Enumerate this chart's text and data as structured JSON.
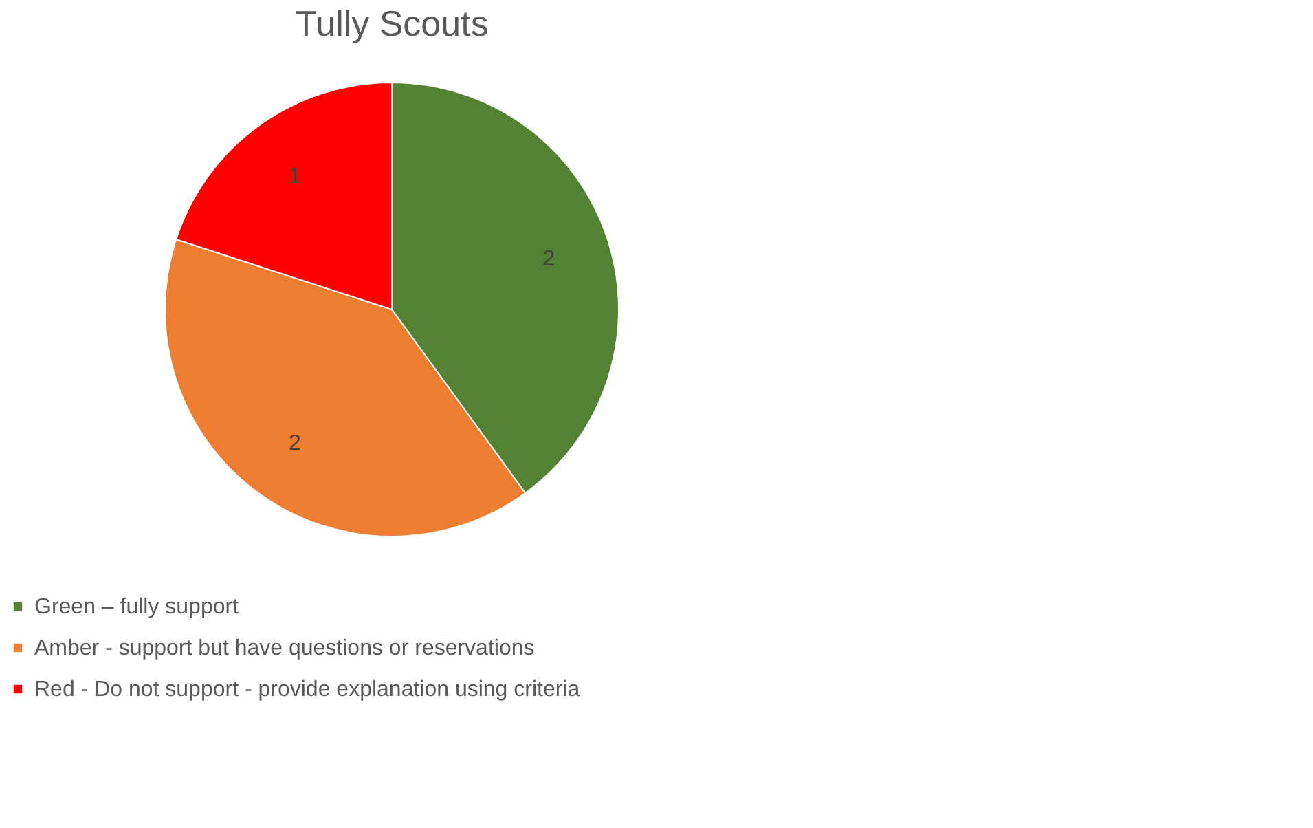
{
  "chart_data": {
    "type": "pie",
    "title": "Tully Scouts",
    "categories": [
      "Green – fully support",
      "Amber - support but have questions or reservations",
      "Red - Do not support - provide explanation using criteria"
    ],
    "values": [
      2,
      2,
      1
    ],
    "colors": [
      "#548235",
      "#ed7d31",
      "#ff0000"
    ],
    "data_labels": true,
    "legend": "bottom"
  }
}
